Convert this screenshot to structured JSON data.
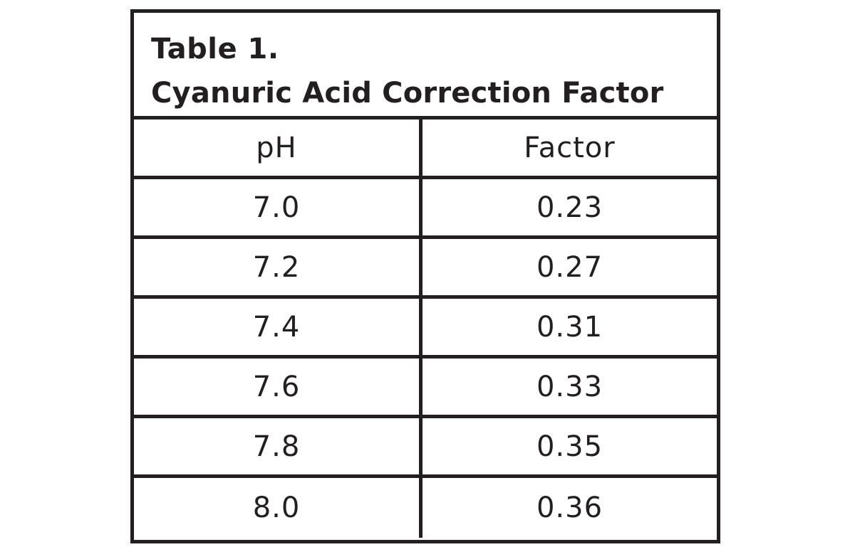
{
  "table": {
    "title_line1": "Table 1.",
    "title_line2": "Cyanuric Acid Correction Factor",
    "columns": [
      "pH",
      "Factor"
    ],
    "rows": [
      [
        "7.0",
        "0.23"
      ],
      [
        "7.2",
        "0.27"
      ],
      [
        "7.4",
        "0.31"
      ],
      [
        "7.6",
        "0.33"
      ],
      [
        "7.8",
        "0.35"
      ],
      [
        "8.0",
        "0.36"
      ]
    ]
  },
  "colors": {
    "text": "#231f20",
    "border": "#231f20",
    "background": "#ffffff"
  }
}
